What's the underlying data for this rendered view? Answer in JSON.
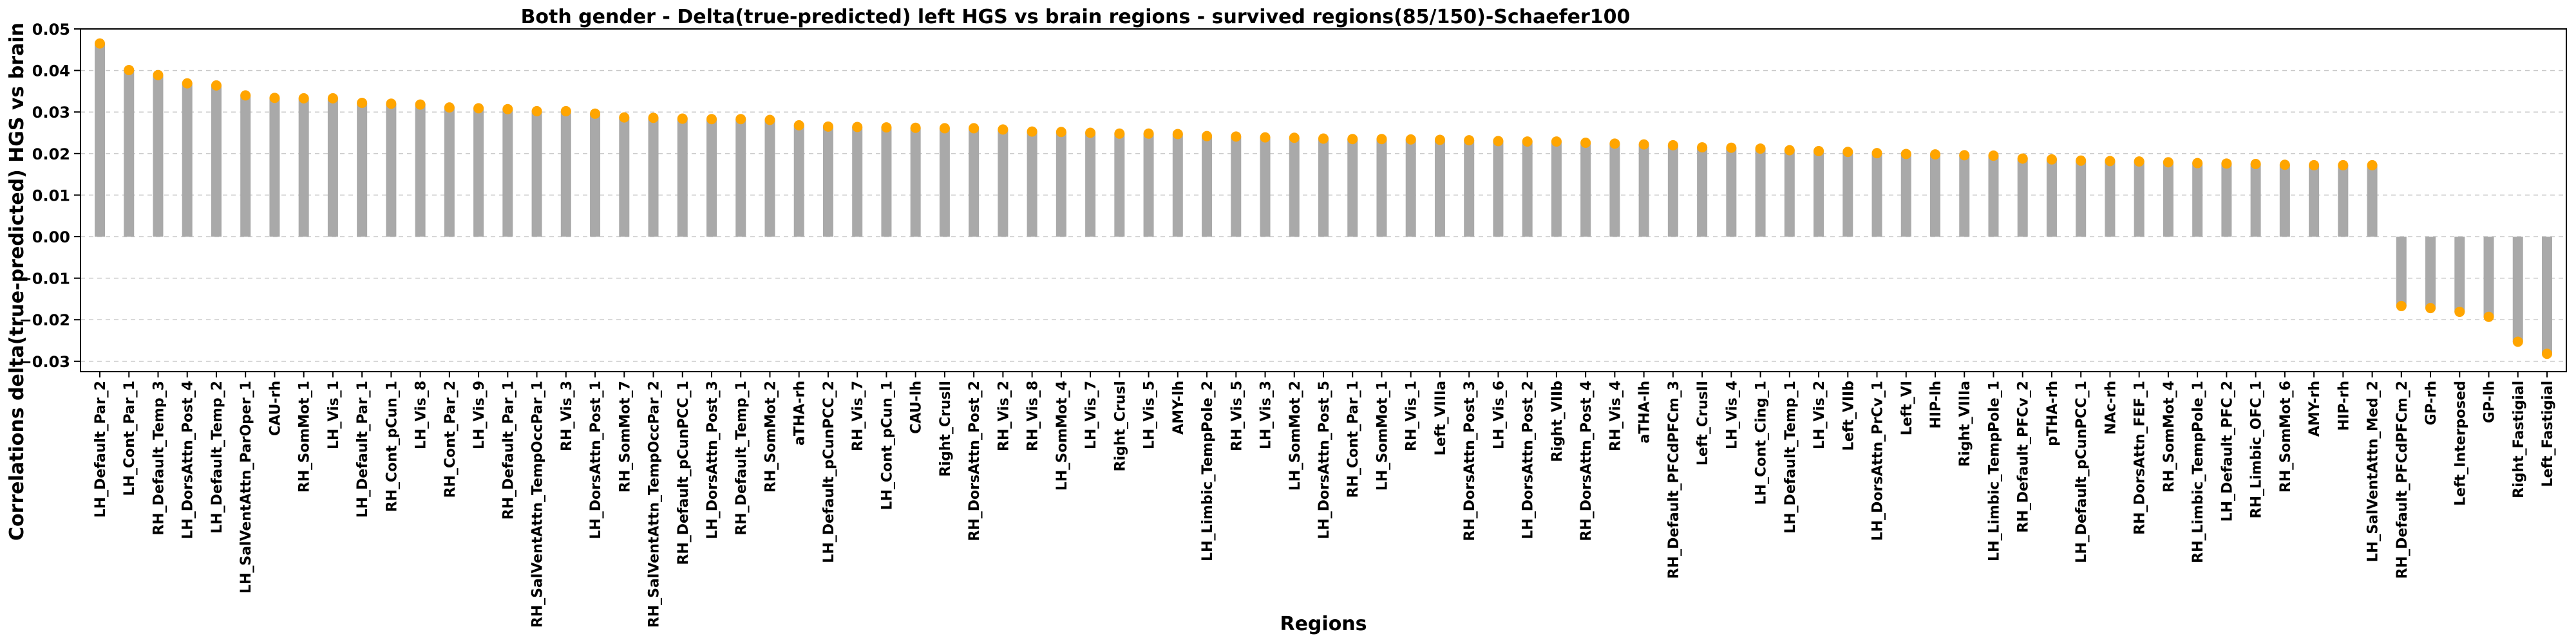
{
  "chart_data": {
    "type": "bar",
    "title": "Both gender - Delta(true-predicted) left HGS vs brain regions - survived regions(85/150)-Schaefer100",
    "xlabel": "Regions",
    "ylabel": "Correlations delta(true-predicted) HGS vs brain",
    "ylim": [
      -0.0325,
      0.05
    ],
    "yticks": [
      -0.03,
      -0.02,
      -0.01,
      0.0,
      0.01,
      0.02,
      0.03,
      0.04,
      0.05
    ],
    "ytick_labels": [
      "−0.03",
      "−0.02",
      "−0.01",
      "0.00",
      "0.01",
      "0.02",
      "0.03",
      "0.04",
      "0.05"
    ],
    "grid": "horizontal dashed",
    "bar_color": "#a9a9a9",
    "marker_color": "#ffa500",
    "categories": [
      "LH_Default_Par_2",
      "LH_Cont_Par_1",
      "RH_Default_Temp_3",
      "LH_DorsAttn_Post_4",
      "LH_Default_Temp_2",
      "LH_SalVentAttn_ParOper_1",
      "CAU-rh",
      "RH_SomMot_1",
      "LH_Vis_1",
      "LH_Default_Par_1",
      "RH_Cont_pCun_1",
      "LH_Vis_8",
      "RH_Cont_Par_2",
      "LH_Vis_9",
      "RH_Default_Par_1",
      "RH_SalVentAttn_TempOccPar_1",
      "RH_Vis_3",
      "LH_DorsAttn_Post_1",
      "RH_SomMot_7",
      "RH_SalVentAttn_TempOccPar_2",
      "RH_Default_pCunPCC_1",
      "LH_DorsAttn_Post_3",
      "RH_Default_Temp_1",
      "RH_SomMot_2",
      "aTHA-rh",
      "LH_Default_pCunPCC_2",
      "RH_Vis_7",
      "LH_Cont_pCun_1",
      "CAU-lh",
      "Right_CrusII",
      "RH_DorsAttn_Post_2",
      "RH_Vis_2",
      "RH_Vis_8",
      "LH_SomMot_4",
      "LH_Vis_7",
      "Right_CrusI",
      "LH_Vis_5",
      "AMY-lh",
      "LH_Limbic_TempPole_2",
      "RH_Vis_5",
      "LH_Vis_3",
      "LH_SomMot_2",
      "LH_DorsAttn_Post_5",
      "RH_Cont_Par_1",
      "LH_SomMot_1",
      "RH_Vis_1",
      "Left_VIIIa",
      "RH_DorsAttn_Post_3",
      "LH_Vis_6",
      "LH_DorsAttn_Post_2",
      "Right_VIIb",
      "RH_DorsAttn_Post_4",
      "RH_Vis_4",
      "aTHA-lh",
      "RH_Default_PFCdPFCm_3",
      "Left_CrusII",
      "LH_Vis_4",
      "LH_Cont_Cing_1",
      "LH_Default_Temp_1",
      "LH_Vis_2",
      "Left_VIIb",
      "LH_DorsAttn_PrCv_1",
      "Left_VI",
      "HIP-lh",
      "Right_VIIIa",
      "LH_Limbic_TempPole_1",
      "RH_Default_PFCv_2",
      "pTHA-rh",
      "LH_Default_pCunPCC_1",
      "NAc-rh",
      "RH_DorsAttn_FEF_1",
      "RH_SomMot_4",
      "RH_Limbic_TempPole_1",
      "LH_Default_PFC_2",
      "RH_Limbic_OFC_1",
      "RH_SomMot_6",
      "AMY-rh",
      "HIP-rh",
      "LH_SalVentAttn_Med_2",
      "RH_Default_PFCdPFCm_2",
      "GP-rh",
      "Left_Interposed",
      "GP-lh",
      "Right_Fastigial",
      "Left_Fastigial"
    ],
    "values": [
      0.0465,
      0.0401,
      0.0389,
      0.0369,
      0.0364,
      0.034,
      0.0334,
      0.0333,
      0.0333,
      0.0322,
      0.032,
      0.0318,
      0.0311,
      0.0309,
      0.0307,
      0.0302,
      0.0302,
      0.0296,
      0.0287,
      0.0286,
      0.0284,
      0.0283,
      0.0283,
      0.0281,
      0.0268,
      0.0265,
      0.0264,
      0.0263,
      0.0262,
      0.0261,
      0.0261,
      0.0258,
      0.0253,
      0.0252,
      0.025,
      0.0248,
      0.0248,
      0.0247,
      0.0242,
      0.0241,
      0.0239,
      0.0238,
      0.0236,
      0.0235,
      0.0235,
      0.0234,
      0.0233,
      0.0232,
      0.023,
      0.0229,
      0.0229,
      0.0226,
      0.0224,
      0.0222,
      0.022,
      0.0215,
      0.0214,
      0.0212,
      0.0208,
      0.0206,
      0.0204,
      0.0201,
      0.0199,
      0.0198,
      0.0196,
      0.0195,
      0.0188,
      0.0186,
      0.0183,
      0.0182,
      0.0181,
      0.0179,
      0.0177,
      0.0176,
      0.0175,
      0.0173,
      0.0172,
      0.0172,
      0.0172,
      -0.0167,
      -0.0172,
      -0.0181,
      -0.0193,
      -0.0253,
      -0.0282
    ]
  }
}
